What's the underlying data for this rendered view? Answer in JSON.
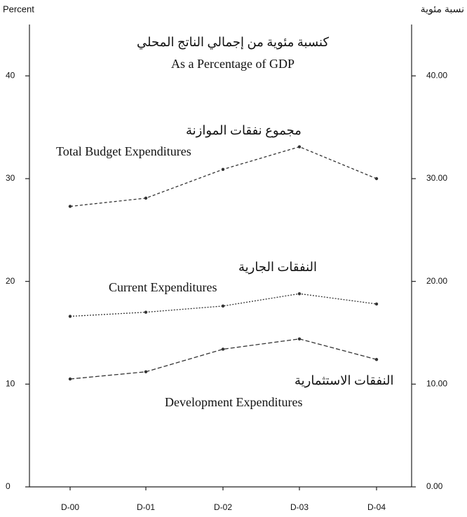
{
  "chart_data": {
    "type": "line",
    "title": "كنسبة مئوية من إجمالي الناتج المحلي",
    "subtitle": "As a Percentage of GDP",
    "y_label": "Percent",
    "y2_label": "نسبة مئوية",
    "categories": [
      "D-00",
      "D-01",
      "D-02",
      "D-03",
      "D-04"
    ],
    "series": [
      {
        "name": "Total Budget Expenditures",
        "name_ar": "مجموع نفقات الموازنة",
        "color": "#333333",
        "values": [
          27.3,
          28.1,
          30.9,
          33.1,
          30.0
        ]
      },
      {
        "name": "Current Expenditures",
        "name_ar": "النفقات الجارية",
        "color": "#333333",
        "values": [
          16.6,
          17.0,
          17.6,
          18.8,
          17.8
        ]
      },
      {
        "name": "Development Expenditures",
        "name_ar": "النفقات الاستثمارية",
        "color": "#333333",
        "values": [
          10.5,
          11.2,
          13.4,
          14.4,
          12.4
        ]
      }
    ],
    "ylim": [
      0,
      45
    ],
    "yticks": [
      0,
      10,
      20,
      30,
      40
    ],
    "y2lim": [
      0,
      45
    ],
    "y2ticks": [
      {
        "value": 0,
        "label": "0.00"
      },
      {
        "value": 10,
        "label": "10.00"
      },
      {
        "value": 20,
        "label": "20.00"
      },
      {
        "value": 30,
        "label": "30.00"
      },
      {
        "value": 40,
        "label": "40.00"
      }
    ],
    "grid": false
  }
}
